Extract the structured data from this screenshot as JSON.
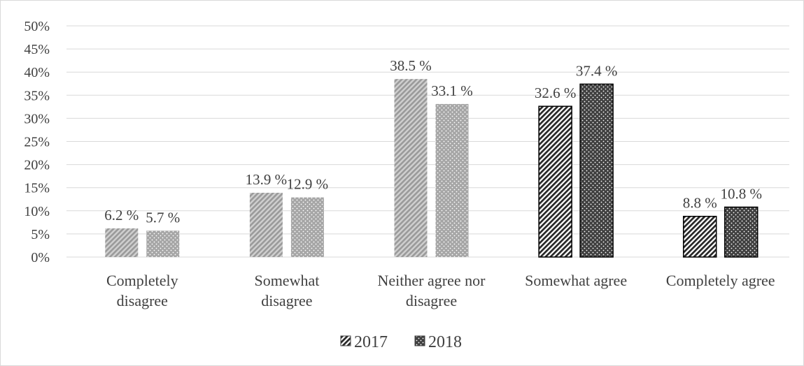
{
  "chart_data": {
    "type": "bar",
    "categories": [
      [
        "Completely",
        "disagree"
      ],
      [
        "Somewhat",
        "disagree"
      ],
      [
        "Neither agree nor",
        "disagree"
      ],
      [
        "Somewhat agree"
      ],
      [
        "Completely agree"
      ]
    ],
    "series": [
      {
        "name": "2017",
        "values": [
          6.2,
          13.9,
          38.5,
          32.6,
          8.8
        ],
        "labels": [
          "6.2 %",
          "13.9 %",
          "38.5 %",
          "32.6 %",
          "8.8 %"
        ]
      },
      {
        "name": "2018",
        "values": [
          5.7,
          12.9,
          33.1,
          37.4,
          10.8
        ],
        "labels": [
          "5.7 %",
          "12.9 %",
          "33.1 %",
          "37.4 %",
          "10.8 %"
        ]
      }
    ],
    "dark_categories": [
      3,
      4
    ],
    "ylim": [
      0,
      50
    ],
    "yticks": [
      "0%",
      "5%",
      "10%",
      "15%",
      "20%",
      "25%",
      "30%",
      "35%",
      "40%",
      "45%",
      "50%"
    ],
    "grid": true,
    "legend_position": "bottom",
    "colors": {
      "light_fill": "#a6a6a6",
      "dark_fill": "#404040",
      "dark_border": "#000000",
      "text": "#404040",
      "grid": "#d9d9d9"
    }
  }
}
